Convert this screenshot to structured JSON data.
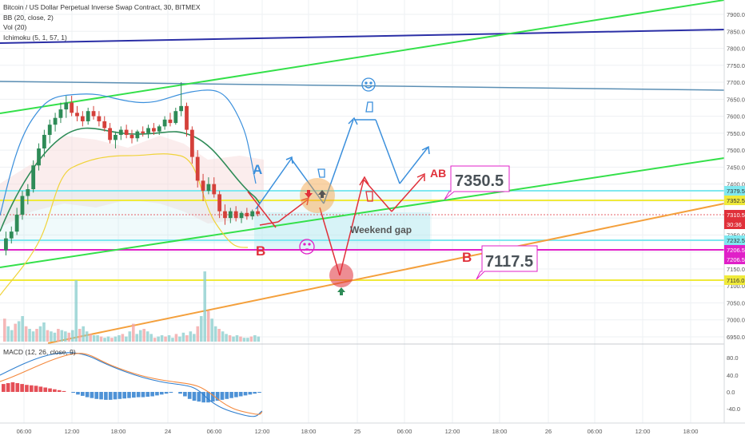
{
  "legend": {
    "symbol": "Bitcoin / US Dollar Perpetual Inverse Swap Contract, 30, BITMEX",
    "bb": "BB (20, close, 2)",
    "vol": "Vol (20)",
    "ichimoku": "Ichimoku (5, 1, 57, 1)"
  },
  "macd_legend": "MACD (12, 26, close, 9)",
  "colors": {
    "green_trend": "#34e04a",
    "blue_trend": "#2b2fa6",
    "steel_trend": "#5b8fb4",
    "orange_trend": "#f4a03c",
    "yellow_line": "#f0ea3a",
    "magenta_line": "#e020c8",
    "cyan_line": "#7fe8f0",
    "candle_up": "#2e8b57",
    "candle_down": "#d4403a",
    "arrow_blue": "#3a8fdc",
    "arrow_red": "#e0303a"
  },
  "chart_data": {
    "type": "candlestick",
    "title": "Bitcoin / US Dollar Perpetual Inverse Swap Contract, 30, BITMEX",
    "price_axis_ticks": [
      "7900.0",
      "7850.0",
      "7800.0",
      "7750.0",
      "7700.0",
      "7650.0",
      "7600.0",
      "7550.0",
      "7500.0",
      "7450.0",
      "7400.0",
      "7350.0",
      "7300.0",
      "7250.0",
      "7200.0",
      "7150.0",
      "7100.0",
      "7050.0",
      "7000.0",
      "6950.0"
    ],
    "ylim": [
      6940,
      7920
    ],
    "time_axis_ticks": [
      "06:00",
      "12:00",
      "18:00",
      "24",
      "06:00",
      "12:00",
      "18:00",
      "25",
      "06:00",
      "12:00",
      "18:00",
      "26",
      "06:00",
      "12:00",
      "18:00"
    ],
    "price_labels": [
      {
        "text": "7379.5",
        "color": "#7fe8f0"
      },
      {
        "text": "7352.5",
        "color": "#f0ea3a"
      },
      {
        "text": "7310.5",
        "color": "#e0303a"
      },
      {
        "text": "30:36",
        "color": "#e0303a"
      },
      {
        "text": "7232.5",
        "color": "#7fe8f0"
      },
      {
        "text": "7206.5",
        "color": "#e020c8"
      },
      {
        "text": "7206.5",
        "color": "#e020c8"
      },
      {
        "text": "7116.0",
        "color": "#f0ea3a"
      }
    ],
    "annotations": [
      "7350.5",
      "7117.5",
      "Weekend gap",
      "A",
      "B",
      "B",
      "AB"
    ],
    "macd_ticks": [
      "80.0",
      "40.0",
      "0.0",
      "-40.0"
    ],
    "ohlc": [
      [
        7205,
        7260,
        7190,
        7240
      ],
      [
        7240,
        7275,
        7225,
        7260
      ],
      [
        7260,
        7330,
        7250,
        7310
      ],
      [
        7310,
        7380,
        7295,
        7365
      ],
      [
        7365,
        7400,
        7340,
        7385
      ],
      [
        7385,
        7470,
        7375,
        7455
      ],
      [
        7455,
        7520,
        7440,
        7505
      ],
      [
        7505,
        7560,
        7480,
        7545
      ],
      [
        7545,
        7590,
        7520,
        7575
      ],
      [
        7575,
        7610,
        7555,
        7595
      ],
      [
        7595,
        7640,
        7580,
        7620
      ],
      [
        7620,
        7660,
        7595,
        7640
      ],
      [
        7640,
        7660,
        7600,
        7610
      ],
      [
        7610,
        7630,
        7585,
        7600
      ],
      [
        7600,
        7615,
        7570,
        7585
      ],
      [
        7585,
        7625,
        7575,
        7615
      ],
      [
        7615,
        7630,
        7590,
        7600
      ],
      [
        7600,
        7615,
        7570,
        7585
      ],
      [
        7585,
        7600,
        7555,
        7565
      ],
      [
        7565,
        7580,
        7520,
        7530
      ],
      [
        7530,
        7555,
        7505,
        7545
      ],
      [
        7545,
        7570,
        7530,
        7560
      ],
      [
        7560,
        7575,
        7535,
        7545
      ],
      [
        7545,
        7560,
        7520,
        7535
      ],
      [
        7535,
        7560,
        7525,
        7555
      ],
      [
        7555,
        7570,
        7540,
        7550
      ],
      [
        7550,
        7575,
        7535,
        7565
      ],
      [
        7565,
        7580,
        7545,
        7555
      ],
      [
        7555,
        7575,
        7545,
        7570
      ],
      [
        7570,
        7600,
        7560,
        7590
      ],
      [
        7590,
        7610,
        7570,
        7580
      ],
      [
        7580,
        7625,
        7575,
        7615
      ],
      [
        7615,
        7700,
        7600,
        7630
      ],
      [
        7630,
        7640,
        7540,
        7560
      ],
      [
        7560,
        7570,
        7460,
        7480
      ],
      [
        7480,
        7500,
        7390,
        7410
      ],
      [
        7410,
        7430,
        7350,
        7380
      ],
      [
        7380,
        7420,
        7370,
        7400
      ],
      [
        7400,
        7420,
        7360,
        7370
      ],
      [
        7370,
        7380,
        7300,
        7320
      ],
      [
        7320,
        7340,
        7280,
        7300
      ],
      [
        7300,
        7330,
        7285,
        7320
      ],
      [
        7320,
        7335,
        7290,
        7300
      ],
      [
        7300,
        7320,
        7285,
        7315
      ],
      [
        7315,
        7330,
        7295,
        7305
      ],
      [
        7305,
        7325,
        7295,
        7320
      ],
      [
        7320,
        7340,
        7305,
        7312
      ]
    ],
    "volume": [
      18,
      12,
      9,
      14,
      16,
      20,
      12,
      10,
      8,
      10,
      12,
      15,
      9,
      8,
      7,
      10,
      9,
      8,
      7,
      9,
      48,
      10,
      12,
      8,
      6,
      5,
      5,
      4,
      3,
      4,
      3,
      4,
      5,
      6,
      4,
      8,
      14,
      6,
      9,
      10,
      8,
      6,
      3,
      4,
      5,
      4,
      5,
      3,
      6,
      4,
      7,
      5,
      8,
      6,
      12,
      20,
      55,
      24,
      18,
      12,
      10,
      8,
      6,
      5,
      4,
      5,
      4,
      3,
      3,
      4,
      5,
      4
    ],
    "macd_hist": [
      18,
      20,
      22,
      20,
      18,
      16,
      15,
      14,
      12,
      10,
      8,
      6,
      4,
      2,
      0,
      -2,
      -6,
      -9,
      -12,
      -14,
      -16,
      -17,
      -18,
      -18,
      -17,
      -16,
      -15,
      -14,
      -13,
      -12,
      -12,
      -11,
      -10,
      -8,
      -6,
      -4,
      -2,
      0,
      -4,
      -10,
      -16,
      -20,
      -22,
      -24,
      -24,
      -22,
      -20,
      -18,
      -16,
      -14,
      -12,
      -10,
      -8,
      -6,
      -4,
      -2
    ]
  }
}
